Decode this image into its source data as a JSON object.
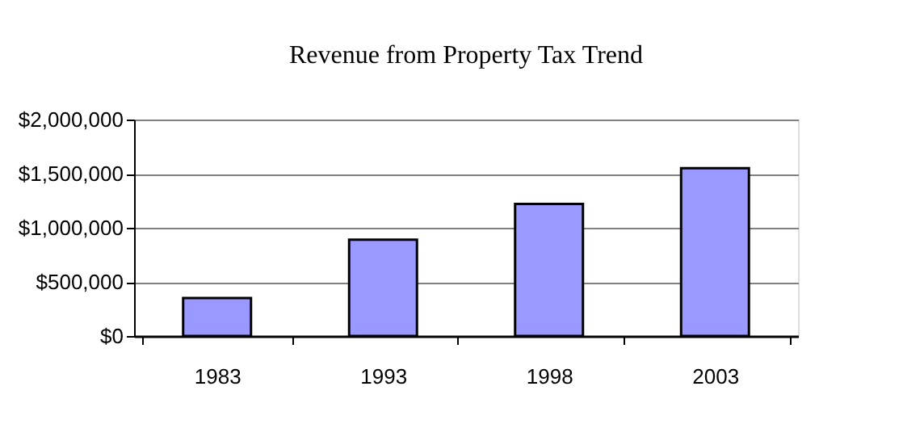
{
  "chart_data": {
    "type": "bar",
    "title": "Revenue from Property Tax Trend",
    "categories": [
      "1983",
      "1993",
      "1998",
      "2003"
    ],
    "values": [
      350000,
      890000,
      1220000,
      1550000
    ],
    "color": "#9999ff",
    "ylim": [
      0,
      2000000
    ],
    "yticks": [
      {
        "value": 0,
        "label": "$0"
      },
      {
        "value": 500000,
        "label": "$500,000"
      },
      {
        "value": 1000000,
        "label": "$1,000,000"
      },
      {
        "value": 1500000,
        "label": "$1,500,000"
      },
      {
        "value": 2000000,
        "label": "$2,000,000"
      }
    ],
    "grid": "y"
  }
}
